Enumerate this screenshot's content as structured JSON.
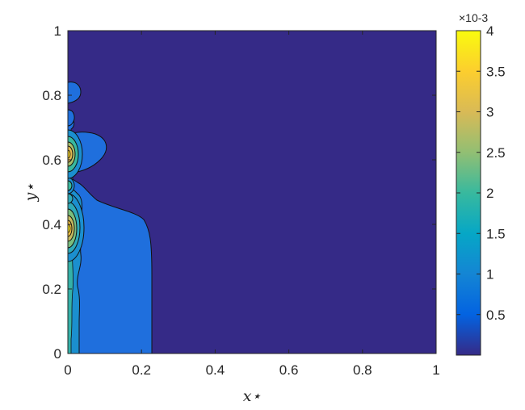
{
  "chart_data": {
    "type": "heatmap",
    "subtype": "filled-contour",
    "title": "",
    "xlabel": "x⋆",
    "ylabel": "y⋆",
    "xlim": [
      0,
      1
    ],
    "ylim": [
      0,
      1
    ],
    "x_ticks": [
      "0",
      "0.2",
      "0.4",
      "0.6",
      "0.8",
      "1"
    ],
    "y_ticks": [
      "0",
      "0.2",
      "0.4",
      "0.6",
      "0.8",
      "1"
    ],
    "colormap": "parula",
    "colorbar": {
      "range": [
        0,
        0.004
      ],
      "ticks": [
        "0.5",
        "1",
        "1.5",
        "2",
        "2.5",
        "3",
        "3.5",
        "4"
      ],
      "exponent_label": "×10-3",
      "placement": "right"
    },
    "grid": false,
    "background_level_color": "#352a87",
    "regions": [
      {
        "name": "low-level-plume",
        "approx_value": 0.0007,
        "x_extent": [
          0,
          0.23
        ],
        "y_extent": [
          0,
          0.75
        ],
        "color": "#1f6fdd"
      },
      {
        "name": "hotspot-lower",
        "x": 0.0,
        "y": 0.39,
        "approx_peak": 0.0037
      },
      {
        "name": "hotspot-upper",
        "x": 0.0,
        "y": 0.62,
        "approx_peak": 0.0035
      },
      {
        "name": "hotspot-middle",
        "x": 0.0,
        "y": 0.51,
        "approx_peak": 0.0015
      },
      {
        "name": "hotspot-top",
        "x": 0.0,
        "y": 0.82,
        "approx_peak": 0.0007
      },
      {
        "name": "bottom-wall-band",
        "x_extent": [
          0,
          0.025
        ],
        "y_extent": [
          0,
          0.3
        ],
        "approx_value": 0.0018
      }
    ]
  }
}
